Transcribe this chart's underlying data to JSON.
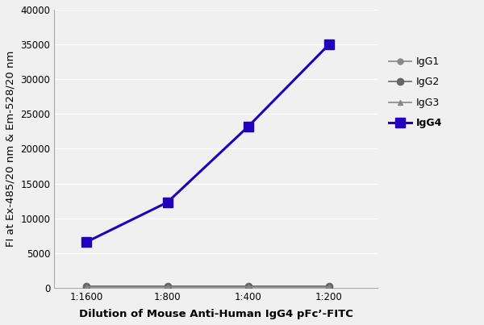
{
  "x_labels": [
    "1:1600",
    "1:800",
    "1:400",
    "1:200"
  ],
  "x_positions": [
    1,
    2,
    3,
    4
  ],
  "IgG1": [
    200,
    200,
    200,
    200
  ],
  "IgG2": [
    200,
    200,
    200,
    200
  ],
  "IgG3": [
    150,
    150,
    150,
    150
  ],
  "IgG4": [
    6600,
    12300,
    23200,
    35000
  ],
  "IgG1_color": "#888888",
  "IgG2_color": "#666666",
  "IgG3_color": "#888888",
  "IgG4_color": "#2200bb",
  "ylabel": "FI at Ex-485/20 nm & Em-528/20 nm",
  "xlabel": "Dilution of Mouse Anti-Human IgG4 pFc’-FITC",
  "ylim": [
    0,
    40000
  ],
  "yticks": [
    0,
    5000,
    10000,
    15000,
    20000,
    25000,
    30000,
    35000,
    40000
  ],
  "bg_color": "#f0f0f0",
  "plot_bg_color": "#f0f0f0",
  "grid_color": "#ffffff",
  "label_fontsize": 9.5,
  "tick_fontsize": 8.5,
  "legend_fontsize": 9
}
